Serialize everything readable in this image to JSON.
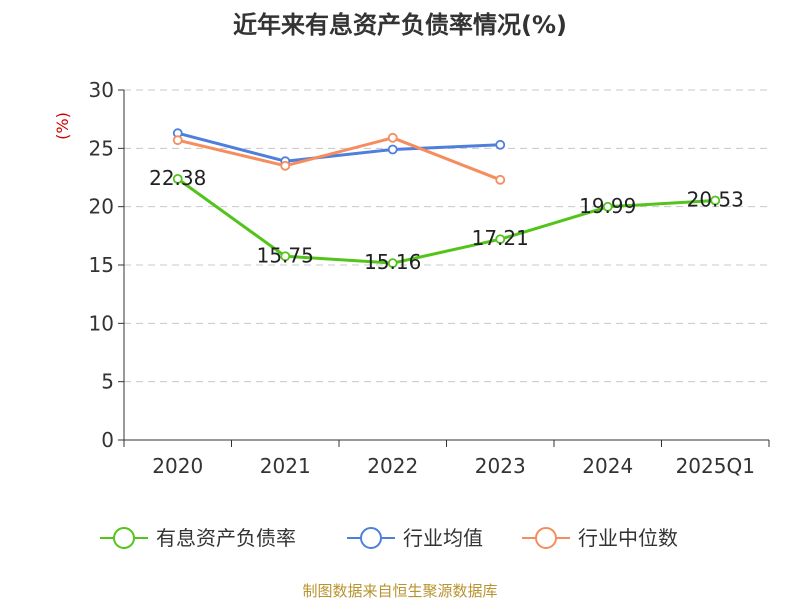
{
  "chart_data": {
    "type": "line",
    "title": "近年来有息资产负债率情况(%)",
    "unit_label": "(%)",
    "categories": [
      "2020",
      "2021",
      "2022",
      "2023",
      "2024",
      "2025Q1"
    ],
    "ylim": [
      0,
      30
    ],
    "yticks": [
      "0",
      "5",
      "10",
      "15",
      "20",
      "25",
      "30"
    ],
    "grid": true,
    "legend_position": "bottom",
    "series": [
      {
        "name": "有息资产负债率",
        "color": "#52c41a",
        "values": [
          22.38,
          15.75,
          15.16,
          17.21,
          19.99,
          20.53
        ],
        "labels": [
          "22.38",
          "15.75",
          "15.16",
          "17.21",
          "19.99",
          "20.53"
        ]
      },
      {
        "name": "行业均值",
        "color": "#4f7fdc",
        "values": [
          26.3,
          23.9,
          24.9,
          25.3,
          null,
          null
        ]
      },
      {
        "name": "行业中位数",
        "color": "#f58d5e",
        "values": [
          25.7,
          23.5,
          25.9,
          22.3,
          null,
          null
        ]
      }
    ]
  },
  "source_text": "制图数据来自恒生聚源数据库"
}
